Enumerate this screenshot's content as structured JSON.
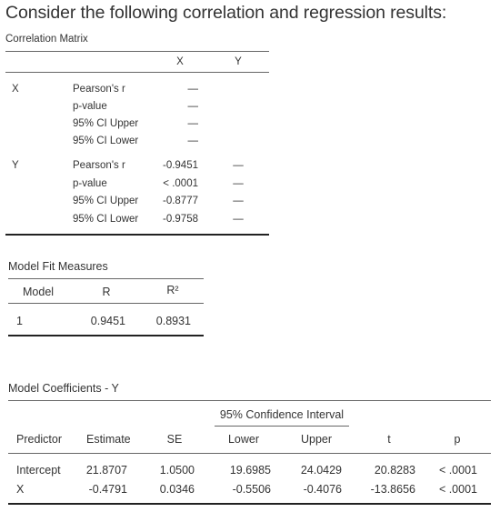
{
  "heading": "Consider the following correlation and regression results:",
  "correlation_matrix": {
    "title": "Correlation Matrix",
    "col_x": "X",
    "col_y": "Y",
    "rows": [
      {
        "var": "X",
        "entries": [
          {
            "stat": "Pearson's r",
            "x": "—",
            "y": ""
          },
          {
            "stat": "p-value",
            "x": "—",
            "y": ""
          },
          {
            "stat": "95% CI Upper",
            "x": "—",
            "y": ""
          },
          {
            "stat": "95% CI Lower",
            "x": "—",
            "y": ""
          }
        ]
      },
      {
        "var": "Y",
        "entries": [
          {
            "stat": "Pearson's r",
            "x": "-0.9451",
            "y": "—"
          },
          {
            "stat": "p-value",
            "x": "< .0001",
            "y": "—"
          },
          {
            "stat": "95% CI Upper",
            "x": "-0.8777",
            "y": "—"
          },
          {
            "stat": "95% CI Lower",
            "x": "-0.9758",
            "y": "—"
          }
        ]
      }
    ]
  },
  "model_fit": {
    "title": "Model Fit Measures",
    "headers": {
      "model": "Model",
      "r": "R",
      "r2": "R²"
    },
    "row": {
      "model": "1",
      "r": "0.9451",
      "r2": "0.8931"
    }
  },
  "coefficients": {
    "title": "Model Coefficients - Y",
    "ci_header": "95% Confidence Interval",
    "headers": {
      "predictor": "Predictor",
      "estimate": "Estimate",
      "se": "SE",
      "lower": "Lower",
      "upper": "Upper",
      "t": "t",
      "p": "p"
    },
    "rows": [
      {
        "predictor": "Intercept",
        "estimate": "21.8707",
        "se": "1.0500",
        "lower": "19.6985",
        "upper": "24.0429",
        "t": "20.8283",
        "p": "< .0001"
      },
      {
        "predictor": "X",
        "estimate": "-0.4791",
        "se": "0.0346",
        "lower": "-0.5506",
        "upper": "-0.4076",
        "t": "-13.8656",
        "p": "< .0001"
      }
    ]
  }
}
